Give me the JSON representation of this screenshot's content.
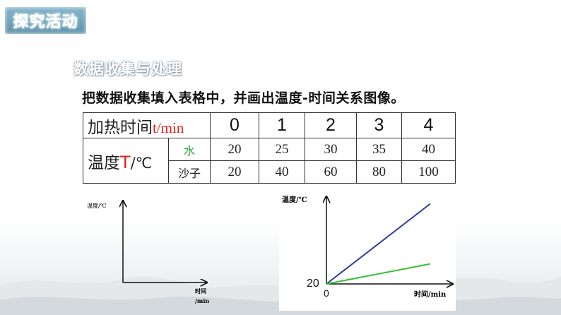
{
  "header": {
    "badge": "探究活动",
    "subtitle": "数据收集与处理"
  },
  "instruction": "把数据收集填入表格中，并画出温度-时间关系图像。",
  "table": {
    "time_label": "加热时间",
    "time_unit": "t/min",
    "times": [
      "0",
      "1",
      "2",
      "3",
      "4"
    ],
    "temp_label": "温度",
    "temp_symbol": "T",
    "temp_unit": "/℃",
    "rows": [
      {
        "material": "水",
        "values": [
          "20",
          "25",
          "30",
          "35",
          "40"
        ]
      },
      {
        "material": "沙子",
        "values": [
          "20",
          "40",
          "60",
          "80",
          "100"
        ]
      }
    ]
  },
  "blank_chart": {
    "y_label": "温度/℃",
    "x_label_line1": "时间",
    "x_label_line2": "/min"
  },
  "chart_data": {
    "type": "line",
    "ylabel": "温度/℃",
    "xlabel": "时间/min",
    "origin_y_label": "20",
    "origin_x_label": "0",
    "series": [
      {
        "color": "#2a3a9e",
        "x": [
          0,
          4
        ],
        "y": [
          20,
          100
        ]
      },
      {
        "color": "#35c033",
        "x": [
          0,
          4
        ],
        "y": [
          20,
          40
        ]
      }
    ],
    "xlim": [
      0,
      4.6
    ],
    "ylim": [
      20,
      106
    ]
  },
  "colors": {
    "sand_line": "#2a3a9e",
    "water_line": "#35c033",
    "badge": "#6a9db4"
  }
}
